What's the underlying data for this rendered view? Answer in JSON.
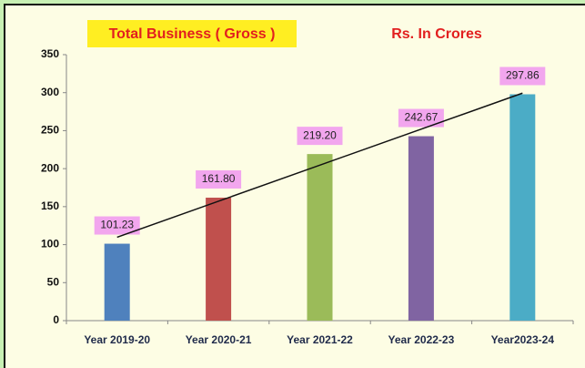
{
  "chart_data": {
    "type": "bar",
    "title": "Total Business ( Gross )",
    "subtitle": "Rs. In Crores",
    "categories": [
      "Year 2019-20",
      "Year 2020-21",
      "Year 2021-22",
      "Year  2022-23",
      "Year2023-24"
    ],
    "values": [
      101.23,
      161.8,
      219.2,
      242.67,
      297.86
    ],
    "value_labels": [
      "101.23",
      "161.80",
      "219.20",
      "242.67",
      "297.86"
    ],
    "colors": [
      "#4f81bd",
      "#c0504d",
      "#9bbb59",
      "#8064a2",
      "#4bacc6"
    ],
    "ylim": [
      0,
      350
    ],
    "yticks": [
      0,
      50,
      100,
      150,
      200,
      250,
      300,
      350
    ],
    "trendline": "linear",
    "grid": false
  }
}
